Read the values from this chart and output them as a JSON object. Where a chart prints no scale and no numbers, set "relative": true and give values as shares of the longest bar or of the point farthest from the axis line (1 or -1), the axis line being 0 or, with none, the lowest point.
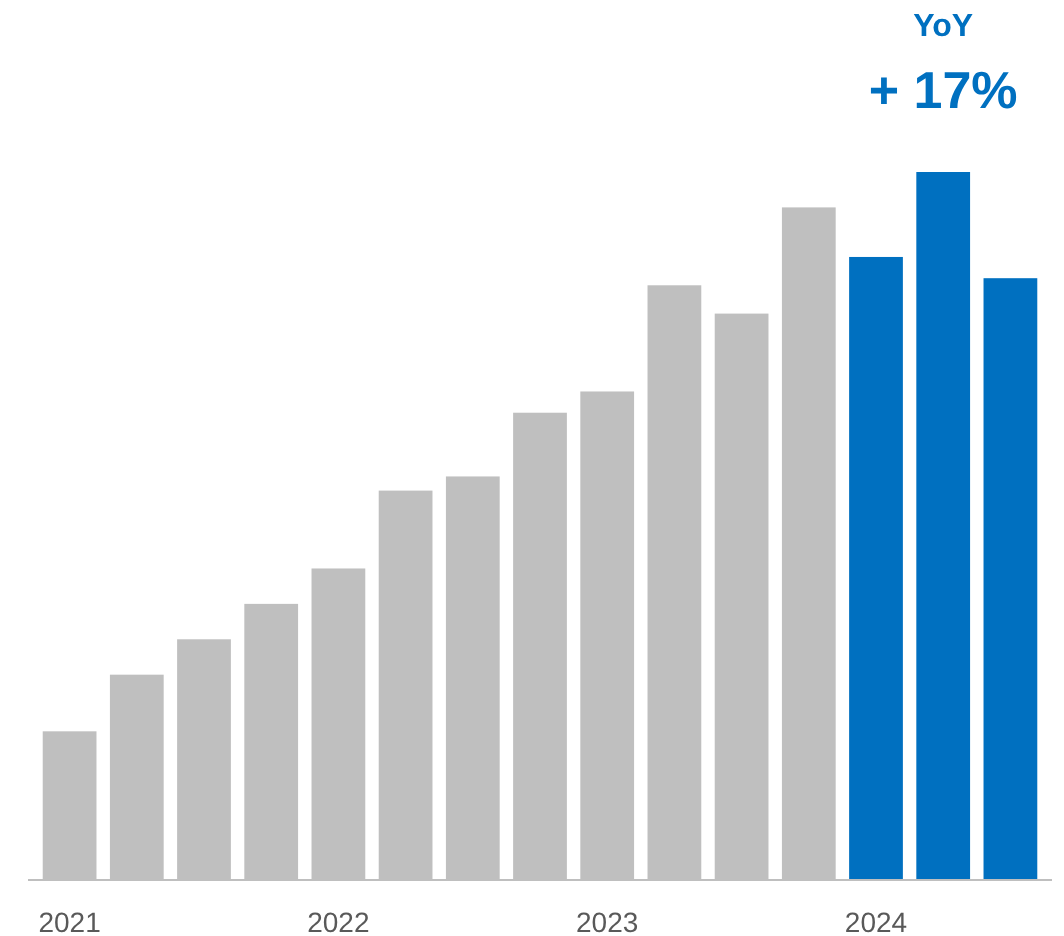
{
  "chart_data": {
    "type": "bar",
    "relative": true,
    "categories": [
      "2021",
      null,
      null,
      null,
      "2022",
      null,
      null,
      null,
      "2023",
      null,
      null,
      null,
      "2024",
      null,
      null
    ],
    "values": [
      0.21,
      0.29,
      0.34,
      0.39,
      0.44,
      0.55,
      0.57,
      0.66,
      0.69,
      0.84,
      0.8,
      0.95,
      0.88,
      1,
      0.85
    ],
    "colors": [
      "#bfbfbf",
      "#bfbfbf",
      "#bfbfbf",
      "#bfbfbf",
      "#bfbfbf",
      "#bfbfbf",
      "#bfbfbf",
      "#bfbfbf",
      "#bfbfbf",
      "#bfbfbf",
      "#bfbfbf",
      "#bfbfbf",
      "#0070c0",
      "#0070c0",
      "#0070c0"
    ],
    "annotations": [
      "YoY",
      "+ 17%"
    ]
  }
}
